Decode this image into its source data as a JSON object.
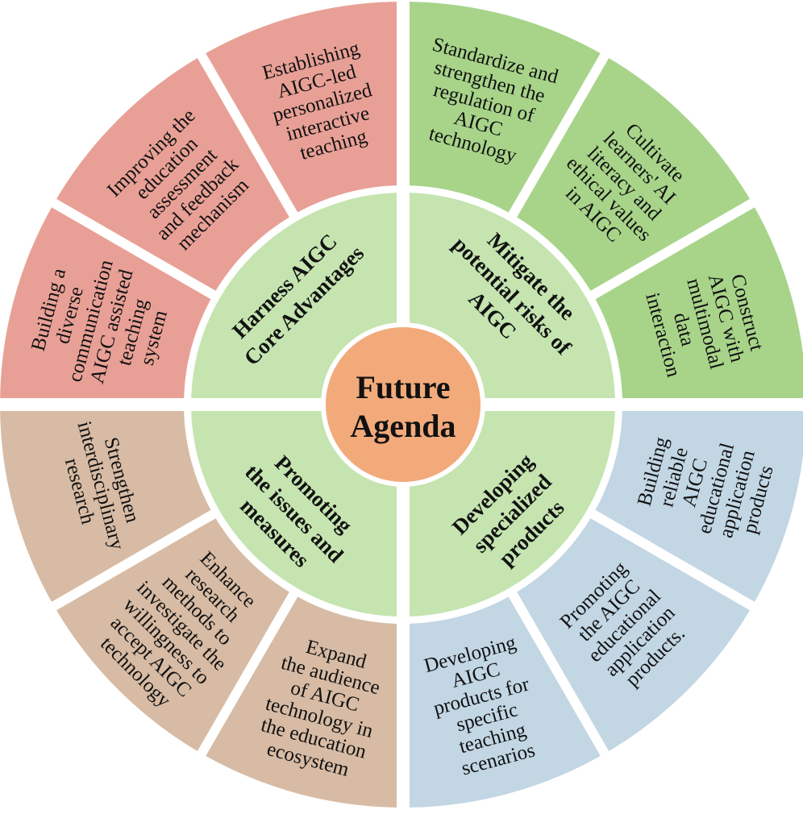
{
  "center": {
    "line1": "Future",
    "line2": "Agenda",
    "color": "#f2aa7b"
  },
  "ring_color": "#c5e4b0",
  "quadrants": [
    {
      "id": "harness",
      "label_lines": [
        "Harness AIGC",
        "Core Advantages"
      ],
      "outer_color": "#e8a096",
      "items": [
        {
          "lines": [
            "Establishing",
            "AIGC-led",
            "personalized",
            "interactive",
            "teaching"
          ]
        },
        {
          "lines": [
            "Improving the",
            "education",
            "assessment",
            "and feedback",
            "mechanism"
          ]
        },
        {
          "lines": [
            "Building a",
            "diverse",
            "communication",
            "AIGC assisted",
            "teaching",
            "system"
          ]
        }
      ]
    },
    {
      "id": "mitigate",
      "label_lines": [
        "Mitigate the",
        "potential risks of",
        "AIGC"
      ],
      "outer_color": "#a8d48a",
      "items": [
        {
          "lines": [
            "Standardize and",
            "strengthen the",
            "regulation of",
            "AIGC",
            "technology"
          ]
        },
        {
          "lines": [
            "Cultivate",
            "learners' AI",
            "literacy and",
            "ethical values",
            "in AIGC"
          ]
        },
        {
          "lines": [
            "Construct",
            "AIGC with",
            "multimodal",
            "data",
            "interaction"
          ]
        }
      ]
    },
    {
      "id": "developing",
      "label_lines": [
        "Developing",
        "specialized",
        "products"
      ],
      "outer_color": "#c2d6e4",
      "items": [
        {
          "lines": [
            "Building",
            "reliable",
            "AIGC",
            "educational",
            "application",
            "products"
          ]
        },
        {
          "lines": [
            "Promoting",
            "the AIGC",
            "educational",
            "application",
            "products."
          ]
        },
        {
          "lines": [
            "Developing",
            "AIGC",
            "products for",
            "specific",
            "teaching",
            "scenarios"
          ]
        }
      ]
    },
    {
      "id": "promoting",
      "label_lines": [
        "Promoting",
        "the issues and",
        "measures"
      ],
      "outer_color": "#d7bba4",
      "items": [
        {
          "lines": [
            "Expand",
            "the audience",
            "of AIGC",
            "technology in",
            "the education",
            "ecosystem"
          ]
        },
        {
          "lines": [
            "Enhance",
            "research",
            "methods to",
            "investigate the",
            "willingness to",
            "accept AIGC",
            "technology"
          ]
        },
        {
          "lines": [
            "Strengthen",
            "interdisciplinary",
            "research"
          ]
        }
      ]
    }
  ]
}
